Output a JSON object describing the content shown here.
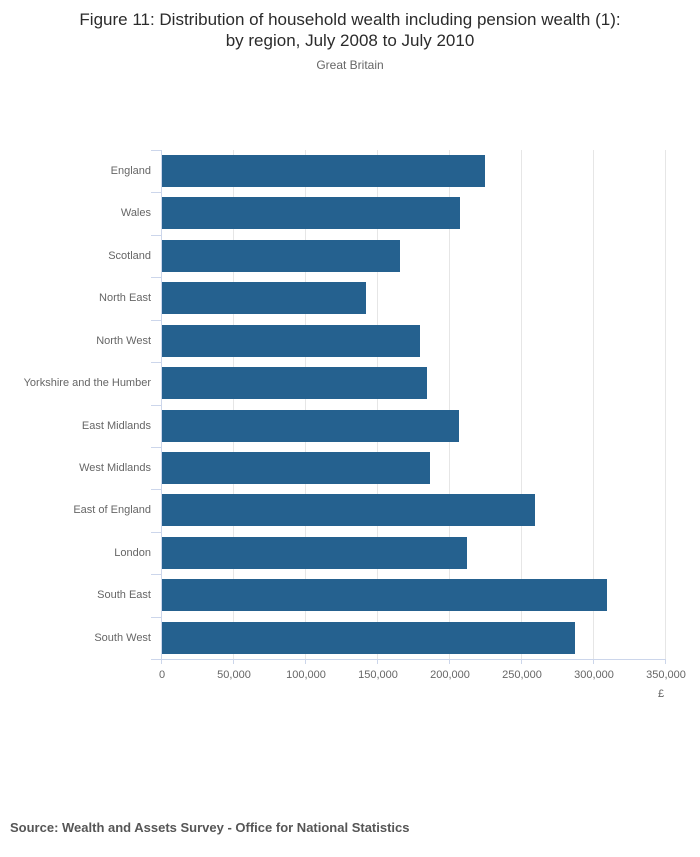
{
  "header": {
    "title_line1": "Figure 11: Distribution of household wealth including pension wealth (1):",
    "title_line2": "by region, July 2008 to July 2010",
    "subtitle": "Great Britain"
  },
  "footer": {
    "source": "Source: Wealth and Assets Survey - Office for National Statistics"
  },
  "colors": {
    "bar": "#25618f",
    "grid": "#e6e6e6",
    "axis": "#ccd6eb",
    "axis_text": "#666666",
    "title_text": "#2b2b2b",
    "source_text": "#565656"
  },
  "chart_data": {
    "type": "bar",
    "orientation": "horizontal",
    "title": "Figure 11: Distribution of household wealth including pension wealth (1): by region, July 2008 to July 2010",
    "subtitle": "Great Britain",
    "categories": [
      "England",
      "Wales",
      "Scotland",
      "North East",
      "North West",
      "Yorkshire and the Humber",
      "East Midlands",
      "West Midlands",
      "East of England",
      "London",
      "South East",
      "South West"
    ],
    "values": [
      224000,
      207000,
      165000,
      142000,
      179000,
      184000,
      206000,
      186000,
      259000,
      212000,
      309000,
      287000
    ],
    "xlabel": "£",
    "ylabel": "",
    "xlim": [
      0,
      350000
    ],
    "x_tick_step": 50000,
    "x_tick_labels": [
      "0",
      "50,000",
      "100,000",
      "150,000",
      "200,000",
      "250,000",
      "300,000",
      "350,000"
    ],
    "grid": true,
    "legend_position": "none",
    "source": "Source: Wealth and Assets Survey - Office for National Statistics"
  }
}
